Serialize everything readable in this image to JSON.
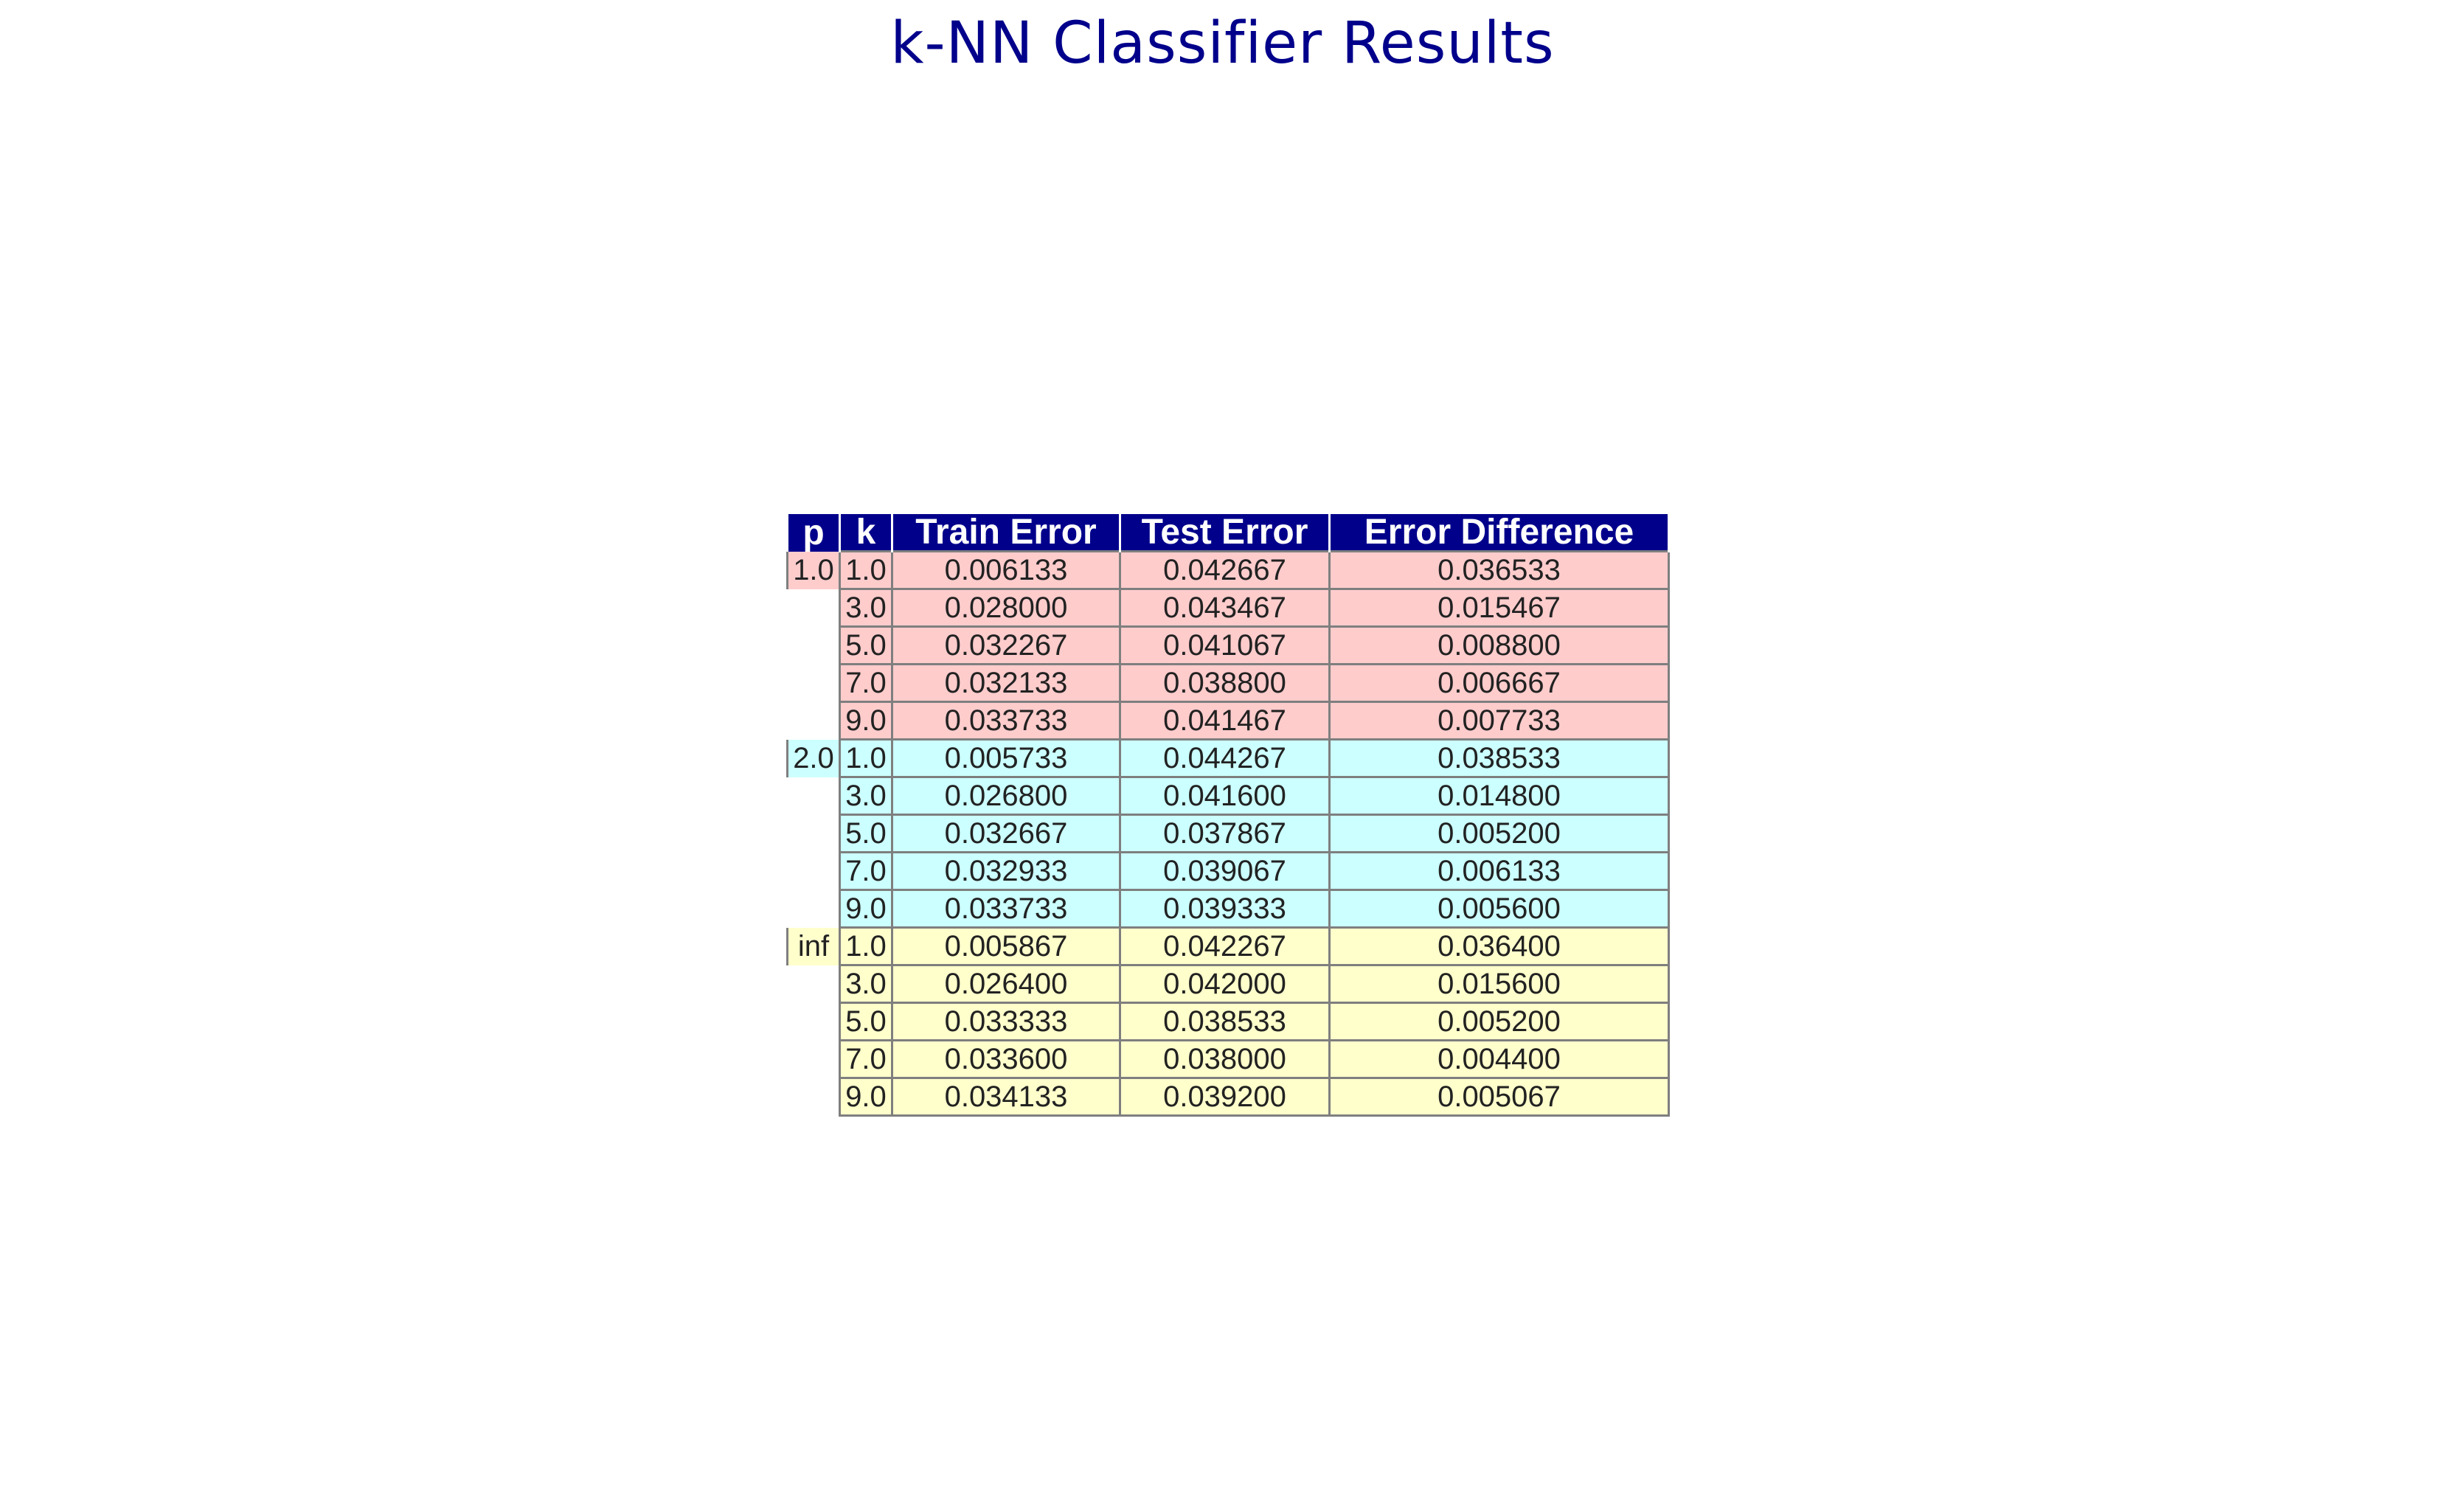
{
  "title": "k-NN Classifier Results",
  "colors": {
    "header_bg": "#00008b",
    "header_text": "#ffffff",
    "title": "#00008b",
    "group_1.0": "#ffcccc",
    "group_2.0": "#ccffff",
    "group_inf": "#ffffcc",
    "border": "#7f7f7f"
  },
  "chart_data": {
    "type": "table",
    "title": "k-NN Classifier Results",
    "columns": [
      "p",
      "k",
      "Train Error",
      "Test Error",
      "Error Difference"
    ],
    "rows": [
      {
        "p": "1.0",
        "k": "1.0",
        "train": "0.006133",
        "test": "0.042667",
        "diff": "0.036533"
      },
      {
        "p": "",
        "k": "3.0",
        "train": "0.028000",
        "test": "0.043467",
        "diff": "0.015467"
      },
      {
        "p": "",
        "k": "5.0",
        "train": "0.032267",
        "test": "0.041067",
        "diff": "0.008800"
      },
      {
        "p": "",
        "k": "7.0",
        "train": "0.032133",
        "test": "0.038800",
        "diff": "0.006667"
      },
      {
        "p": "",
        "k": "9.0",
        "train": "0.033733",
        "test": "0.041467",
        "diff": "0.007733"
      },
      {
        "p": "2.0",
        "k": "1.0",
        "train": "0.005733",
        "test": "0.044267",
        "diff": "0.038533"
      },
      {
        "p": "",
        "k": "3.0",
        "train": "0.026800",
        "test": "0.041600",
        "diff": "0.014800"
      },
      {
        "p": "",
        "k": "5.0",
        "train": "0.032667",
        "test": "0.037867",
        "diff": "0.005200"
      },
      {
        "p": "",
        "k": "7.0",
        "train": "0.032933",
        "test": "0.039067",
        "diff": "0.006133"
      },
      {
        "p": "",
        "k": "9.0",
        "train": "0.033733",
        "test": "0.039333",
        "diff": "0.005600"
      },
      {
        "p": "inf",
        "k": "1.0",
        "train": "0.005867",
        "test": "0.042267",
        "diff": "0.036400"
      },
      {
        "p": "",
        "k": "3.0",
        "train": "0.026400",
        "test": "0.042000",
        "diff": "0.015600"
      },
      {
        "p": "",
        "k": "5.0",
        "train": "0.033333",
        "test": "0.038533",
        "diff": "0.005200"
      },
      {
        "p": "",
        "k": "7.0",
        "train": "0.033600",
        "test": "0.038000",
        "diff": "0.004400"
      },
      {
        "p": "",
        "k": "9.0",
        "train": "0.034133",
        "test": "0.039200",
        "diff": "0.005067"
      }
    ],
    "row_groups": [
      {
        "p": "1.0",
        "color": "#ffcccc"
      },
      {
        "p": "2.0",
        "color": "#ccffff"
      },
      {
        "p": "inf",
        "color": "#ffffcc"
      }
    ]
  }
}
